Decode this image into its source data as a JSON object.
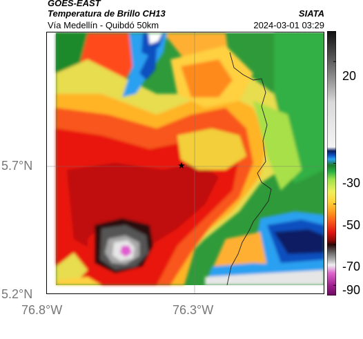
{
  "header": {
    "satellite": "GOES-EAST",
    "product": "Temperatura de Brillo CH13",
    "region": "Vía Medellín - Quibdó 50km",
    "agency": "SIATA",
    "datetime": "2024-03-01 03:29"
  },
  "axes": {
    "x_ticks": [
      "76.8°W",
      "76.3°W"
    ],
    "y_ticks": [
      "5.7°N",
      "5.2°N"
    ]
  },
  "colorbar": {
    "ticks": [
      "20",
      "-30",
      "-50",
      "-70",
      "-90"
    ],
    "range": [
      -95,
      35
    ],
    "stops": [
      {
        "v": 35,
        "c": "#111111"
      },
      {
        "v": 22,
        "c": "#555555"
      },
      {
        "v": 10,
        "c": "#9a9a9a"
      },
      {
        "v": 0,
        "c": "#d9d9d9"
      },
      {
        "v": -22,
        "c": "#f4f4f4"
      },
      {
        "v": -24,
        "c": "#0b1f63"
      },
      {
        "v": -26,
        "c": "#0f4fbf"
      },
      {
        "v": -28,
        "c": "#2aa0f0"
      },
      {
        "v": -31,
        "c": "#1f7a2a"
      },
      {
        "v": -34,
        "c": "#27b043"
      },
      {
        "v": -38,
        "c": "#9fe24a"
      },
      {
        "v": -44,
        "c": "#eef05a"
      },
      {
        "v": -49,
        "c": "#ffd23a"
      },
      {
        "v": -54,
        "c": "#ff9a1f"
      },
      {
        "v": -59,
        "c": "#f8541a"
      },
      {
        "v": -64,
        "c": "#e01410"
      },
      {
        "v": -68,
        "c": "#8a0a08"
      },
      {
        "v": -70,
        "c": "#2a0808"
      },
      {
        "v": -74,
        "c": "#6a6a6a"
      },
      {
        "v": -78,
        "c": "#bbbbbb"
      },
      {
        "v": -80,
        "c": "#eeeeee"
      },
      {
        "v": -84,
        "c": "#dd66cc"
      },
      {
        "v": -90,
        "c": "#a0208e"
      },
      {
        "v": -95,
        "c": "#6c0a60"
      }
    ]
  },
  "colors": {
    "axis_labels": "#777777",
    "star_marker": "#000000",
    "border_line": "#222222"
  }
}
